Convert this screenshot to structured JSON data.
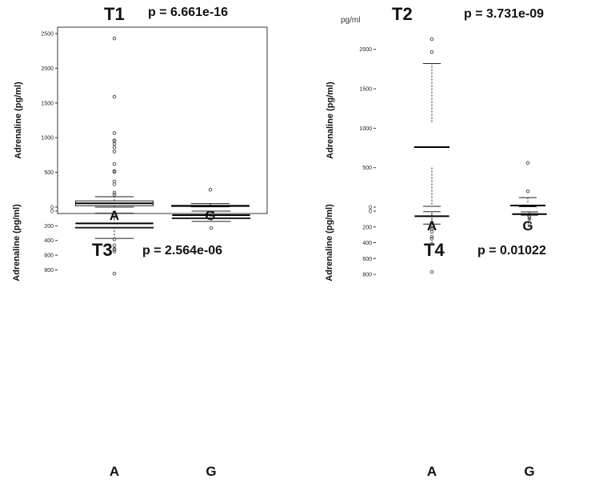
{
  "chart_data": [
    {
      "type": "boxplot",
      "title": "T1",
      "p_value_label": "p = 6.661e-16",
      "ylabel": "Adrenaline (pg/ml)",
      "ylim": [
        0,
        2500
      ],
      "yticks": [
        0,
        500,
        1000,
        1500,
        2000,
        2500
      ],
      "categories": [
        "A",
        "G"
      ],
      "boxes": [
        {
          "name": "A",
          "whisker_low": 0,
          "q1": 20,
          "median": 55,
          "q3": 90,
          "whisker_high": 150,
          "outliers": [
            2430,
            1590,
            1065,
            960,
            950,
            910,
            860,
            800,
            620,
            520,
            505,
            370,
            330,
            210,
            180
          ]
        },
        {
          "name": "G",
          "whisker_low": 5,
          "q1": 10,
          "median": 18,
          "q3": 25,
          "whisker_high": 50,
          "outliers": [
            250
          ]
        }
      ]
    },
    {
      "type": "boxplot",
      "title": "T2",
      "p_value_label": "p = 3.731e-09",
      "unit_label": "pg/ml",
      "ylabel": "Adrenaline (pg/ml)",
      "ylim": [
        0,
        2200
      ],
      "yticks": [
        0,
        500,
        1000,
        1500,
        2000
      ],
      "categories": [
        "A",
        "G"
      ],
      "boxes": [
        {
          "name": "A",
          "whisker_low": 10,
          "q1": 500,
          "median": 760,
          "q3": 1080,
          "whisker_high": 1820,
          "outliers": [
            2130,
            1965
          ]
        },
        {
          "name": "G",
          "whisker_low": 5,
          "q1": 10,
          "median": 20,
          "q3": 60,
          "whisker_high": 120,
          "outliers": [
            560,
            200
          ]
        }
      ]
    },
    {
      "type": "boxplot",
      "title": "T3",
      "p_value_label": "p = 2.564e-06",
      "ylabel": "Adrenaline (pg/ml)",
      "ylim": [
        0,
        860
      ],
      "yticks": [
        0,
        200,
        400,
        600,
        800
      ],
      "categories": [
        "A",
        "G"
      ],
      "boxes": [
        {
          "name": "A",
          "whisker_low": 28,
          "q1": 115,
          "median": 168,
          "q3": 220,
          "whisker_high": 372,
          "outliers": [
            850,
            550,
            525,
            512,
            465,
            385
          ]
        },
        {
          "name": "G",
          "whisker_low": 0,
          "q1": 30,
          "median": 55,
          "q3": 92,
          "whisker_high": 140,
          "outliers": [
            230
          ]
        }
      ]
    },
    {
      "type": "boxplot",
      "title": "T4",
      "p_value_label": "p = 0.01022",
      "ylabel": "Adrenaline (pg/ml)",
      "ylim": [
        0,
        800
      ],
      "yticks": [
        0,
        200,
        400,
        600,
        800
      ],
      "categories": [
        "A",
        "G"
      ],
      "boxes": [
        {
          "name": "A",
          "whisker_low": 8,
          "q1": 42,
          "median": 65,
          "q3": 98,
          "whisker_high": 165,
          "outliers": [
            770,
            415,
            350,
            325,
            262,
            225,
            222,
            198
          ]
        },
        {
          "name": "G",
          "whisker_low": 10,
          "q1": 30,
          "median": 38,
          "q3": 48,
          "whisker_high": 52,
          "outliers": [
            162,
            98,
            75
          ]
        }
      ]
    }
  ],
  "colors": {
    "axis": "#333333",
    "box": "#222222",
    "outlier": "#555555",
    "background": "#ffffff"
  }
}
